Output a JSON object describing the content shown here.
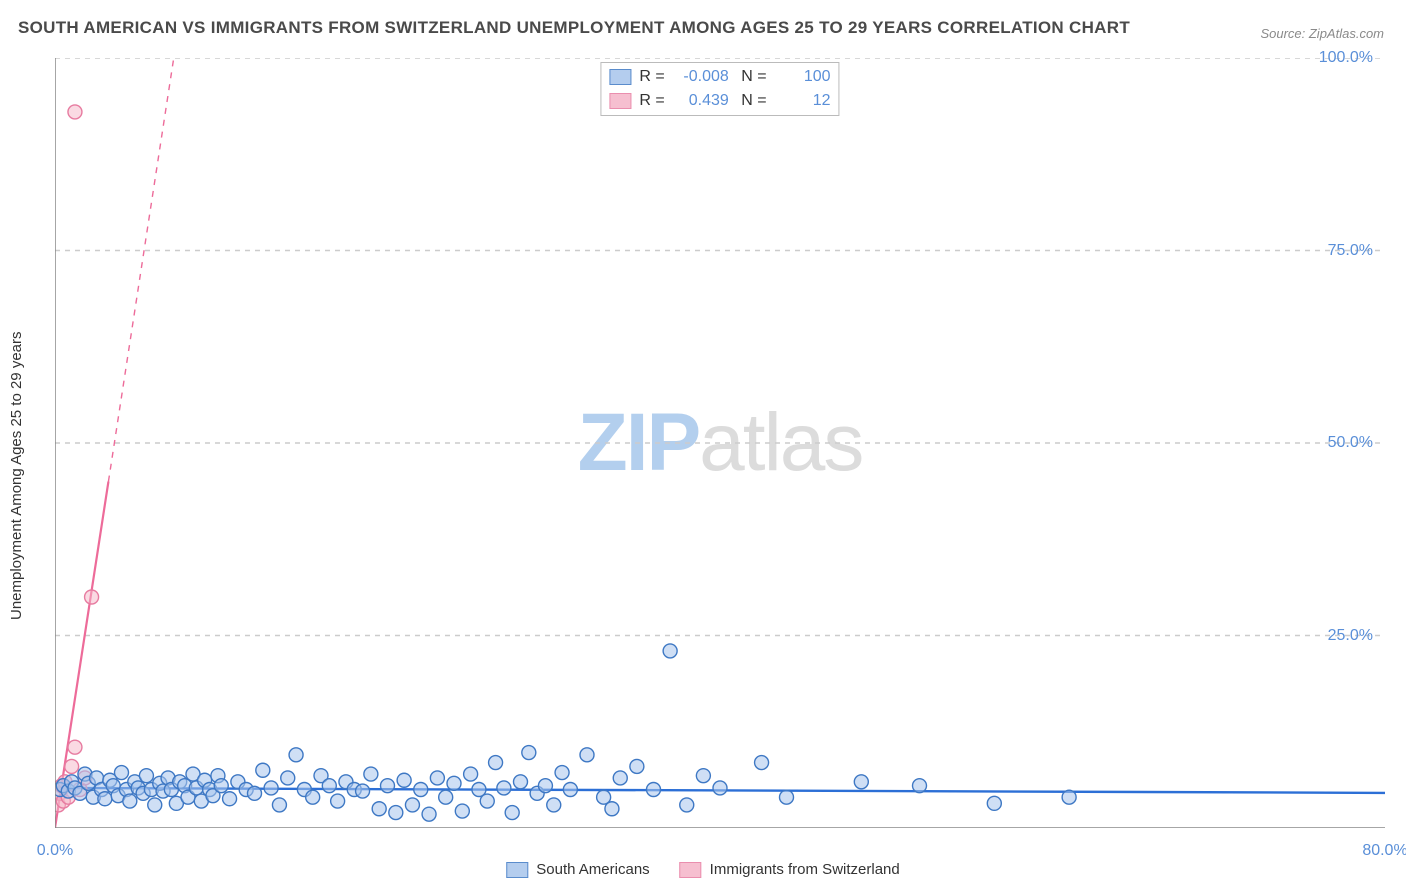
{
  "title": "SOUTH AMERICAN VS IMMIGRANTS FROM SWITZERLAND UNEMPLOYMENT AMONG AGES 25 TO 29 YEARS CORRELATION CHART",
  "source": "Source: ZipAtlas.com",
  "y_axis_label": "Unemployment Among Ages 25 to 29 years",
  "watermark_1": "ZIP",
  "watermark_2": "atlas",
  "chart": {
    "type": "scatter",
    "xlim": [
      0,
      80
    ],
    "ylim": [
      0,
      100
    ],
    "x_ticks": [
      0,
      10,
      20,
      30,
      40,
      50,
      60,
      70,
      80
    ],
    "x_tick_labels": {
      "0": "0.0%",
      "80": "80.0%"
    },
    "y_ticks": [
      25,
      50,
      75,
      100
    ],
    "y_tick_labels": {
      "25": "25.0%",
      "50": "50.0%",
      "75": "75.0%",
      "100": "100.0%"
    },
    "grid_color": "#cccccc",
    "axis_color": "#888888",
    "background_color": "#ffffff",
    "marker_radius": 7,
    "marker_stroke_width": 1.4,
    "series": [
      {
        "name": "South Americans",
        "color_fill": "#a7c5ec",
        "color_stroke": "#3e78c4",
        "fill_opacity": 0.55,
        "R": "-0.008",
        "N": "100",
        "trend_line": {
          "slope": -0.008,
          "intercept": 5.2,
          "color": "#2c6fd6",
          "width": 2.4
        },
        "points": [
          [
            0.3,
            5.0
          ],
          [
            0.5,
            5.5
          ],
          [
            0.8,
            4.8
          ],
          [
            1.0,
            6.0
          ],
          [
            1.2,
            5.2
          ],
          [
            1.5,
            4.5
          ],
          [
            1.8,
            7.0
          ],
          [
            2.0,
            5.8
          ],
          [
            2.3,
            4.0
          ],
          [
            2.5,
            6.5
          ],
          [
            2.8,
            5.0
          ],
          [
            3.0,
            3.8
          ],
          [
            3.3,
            6.2
          ],
          [
            3.5,
            5.5
          ],
          [
            3.8,
            4.2
          ],
          [
            4.0,
            7.2
          ],
          [
            4.3,
            5.0
          ],
          [
            4.5,
            3.5
          ],
          [
            4.8,
            6.0
          ],
          [
            5.0,
            5.2
          ],
          [
            5.3,
            4.5
          ],
          [
            5.5,
            6.8
          ],
          [
            5.8,
            5.0
          ],
          [
            6.0,
            3.0
          ],
          [
            6.3,
            5.8
          ],
          [
            6.5,
            4.8
          ],
          [
            6.8,
            6.5
          ],
          [
            7.0,
            5.0
          ],
          [
            7.3,
            3.2
          ],
          [
            7.5,
            6.0
          ],
          [
            7.8,
            5.5
          ],
          [
            8.0,
            4.0
          ],
          [
            8.3,
            7.0
          ],
          [
            8.5,
            5.2
          ],
          [
            8.8,
            3.5
          ],
          [
            9.0,
            6.2
          ],
          [
            9.3,
            5.0
          ],
          [
            9.5,
            4.2
          ],
          [
            9.8,
            6.8
          ],
          [
            10.0,
            5.5
          ],
          [
            10.5,
            3.8
          ],
          [
            11.0,
            6.0
          ],
          [
            11.5,
            5.0
          ],
          [
            12.0,
            4.5
          ],
          [
            12.5,
            7.5
          ],
          [
            13.0,
            5.2
          ],
          [
            13.5,
            3.0
          ],
          [
            14.0,
            6.5
          ],
          [
            14.5,
            9.5
          ],
          [
            15.0,
            5.0
          ],
          [
            15.5,
            4.0
          ],
          [
            16.0,
            6.8
          ],
          [
            16.5,
            5.5
          ],
          [
            17.0,
            3.5
          ],
          [
            17.5,
            6.0
          ],
          [
            18.0,
            5.0
          ],
          [
            18.5,
            4.8
          ],
          [
            19.0,
            7.0
          ],
          [
            19.5,
            2.5
          ],
          [
            20.0,
            5.5
          ],
          [
            20.5,
            2.0
          ],
          [
            21.0,
            6.2
          ],
          [
            21.5,
            3.0
          ],
          [
            22.0,
            5.0
          ],
          [
            22.5,
            1.8
          ],
          [
            23.0,
            6.5
          ],
          [
            23.5,
            4.0
          ],
          [
            24.0,
            5.8
          ],
          [
            24.5,
            2.2
          ],
          [
            25.0,
            7.0
          ],
          [
            25.5,
            5.0
          ],
          [
            26.0,
            3.5
          ],
          [
            26.5,
            8.5
          ],
          [
            27.0,
            5.2
          ],
          [
            27.5,
            2.0
          ],
          [
            28.0,
            6.0
          ],
          [
            28.5,
            9.8
          ],
          [
            29.0,
            4.5
          ],
          [
            29.5,
            5.5
          ],
          [
            30.0,
            3.0
          ],
          [
            30.5,
            7.2
          ],
          [
            31.0,
            5.0
          ],
          [
            32.0,
            9.5
          ],
          [
            33.0,
            4.0
          ],
          [
            33.5,
            2.5
          ],
          [
            34.0,
            6.5
          ],
          [
            35.0,
            8.0
          ],
          [
            36.0,
            5.0
          ],
          [
            37.0,
            23.0
          ],
          [
            38.0,
            3.0
          ],
          [
            39.0,
            6.8
          ],
          [
            40.0,
            5.2
          ],
          [
            42.5,
            8.5
          ],
          [
            44.0,
            4.0
          ],
          [
            48.5,
            6.0
          ],
          [
            52.0,
            5.5
          ],
          [
            56.5,
            3.2
          ],
          [
            61.0,
            4.0
          ]
        ]
      },
      {
        "name": "Immigrants from Switzerland",
        "color_fill": "#f5b5c8",
        "color_stroke": "#e77ba0",
        "fill_opacity": 0.5,
        "R": "0.439",
        "N": "12",
        "trend_line": {
          "slope": 14.0,
          "intercept": 0,
          "color": "#ed6b99",
          "width": 2.2,
          "dash_after_y": 45
        },
        "points": [
          [
            0.2,
            3.0
          ],
          [
            0.3,
            4.5
          ],
          [
            0.4,
            5.5
          ],
          [
            0.5,
            3.5
          ],
          [
            0.6,
            6.0
          ],
          [
            0.8,
            4.0
          ],
          [
            1.0,
            8.0
          ],
          [
            1.2,
            10.5
          ],
          [
            1.5,
            5.0
          ],
          [
            1.8,
            6.5
          ],
          [
            2.2,
            30.0
          ],
          [
            1.2,
            93.0
          ]
        ]
      }
    ]
  },
  "bottom_legend": {
    "item1": "South Americans",
    "item2": "Immigrants from Switzerland"
  }
}
